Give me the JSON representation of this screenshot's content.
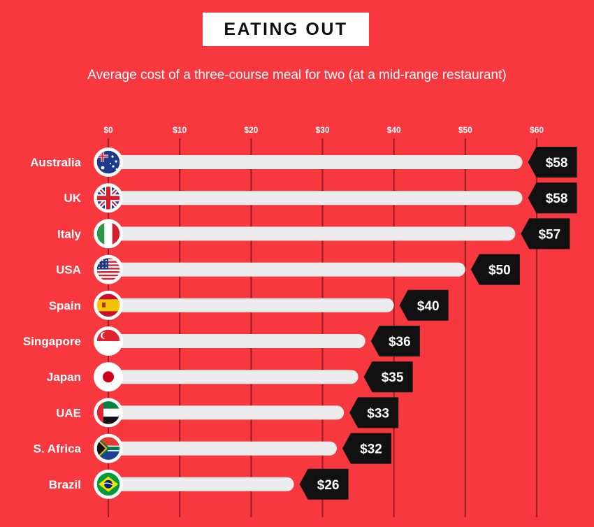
{
  "title": "EATING OUT",
  "subtitle": "Average cost of a three-course meal for two (at a mid-range restaurant)",
  "colors": {
    "background": "#f8383f",
    "bar_track": "#ececec",
    "gridline": "#9a1a22",
    "value_tag": "#111111",
    "text": "#ffffff"
  },
  "chart_data": {
    "type": "bar",
    "orientation": "horizontal",
    "title": "EATING OUT",
    "subtitle": "Average cost of a three-course meal for two (at a mid-range restaurant)",
    "xlim": [
      0,
      60
    ],
    "x_ticks": [
      "$0",
      "$10",
      "$20",
      "$30",
      "$40",
      "$50",
      "$60"
    ],
    "grid": true,
    "categories": [
      "Australia",
      "UK",
      "Italy",
      "USA",
      "Spain",
      "Singapore",
      "Japan",
      "UAE",
      "S. Africa",
      "Brazil"
    ],
    "values": [
      58,
      58,
      57,
      50,
      40,
      36,
      35,
      33,
      32,
      26
    ],
    "value_labels": [
      "$58",
      "$58",
      "$57",
      "$50",
      "$40",
      "$36",
      "$35",
      "$33",
      "$32",
      "$26"
    ],
    "flag_icons": [
      "australia-flag-icon",
      "uk-flag-icon",
      "italy-flag-icon",
      "usa-flag-icon",
      "spain-flag-icon",
      "singapore-flag-icon",
      "japan-flag-icon",
      "uae-flag-icon",
      "south-africa-flag-icon",
      "brazil-flag-icon"
    ]
  }
}
